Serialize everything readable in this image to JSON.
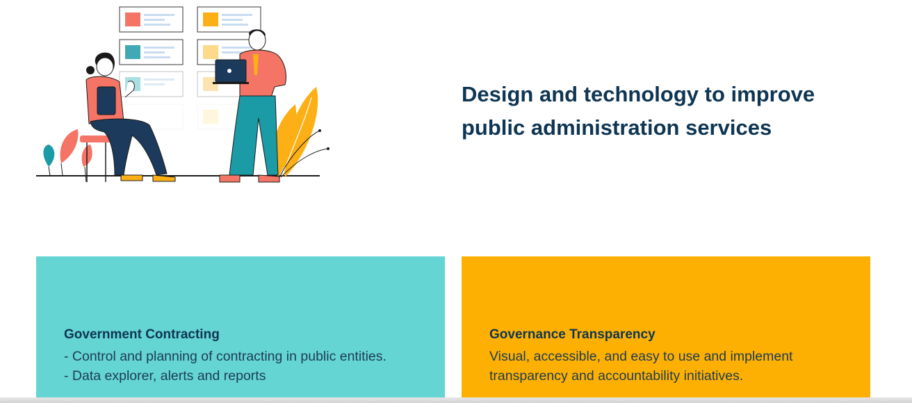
{
  "hero": {
    "headline_line1": "Design and technology to improve",
    "headline_line2": "public administration services"
  },
  "cards": [
    {
      "title": "Government Contracting",
      "lines": [
        "- Control and planning of contracting in public entities.",
        "- Data explorer, alerts and reports"
      ],
      "color": "#64d5d3"
    },
    {
      "title": "Governance Transparency",
      "lines": [
        "Visual, accessible, and easy to use and implement",
        "transparency and accountability initiatives."
      ],
      "color": "#feb002"
    }
  ],
  "colors": {
    "heading": "#0e3553",
    "coral": "#f47565",
    "teal": "#1a9ba6",
    "amber": "#fcb016",
    "navy": "#1c3a5c"
  },
  "icons": [
    "laptop-icon"
  ]
}
